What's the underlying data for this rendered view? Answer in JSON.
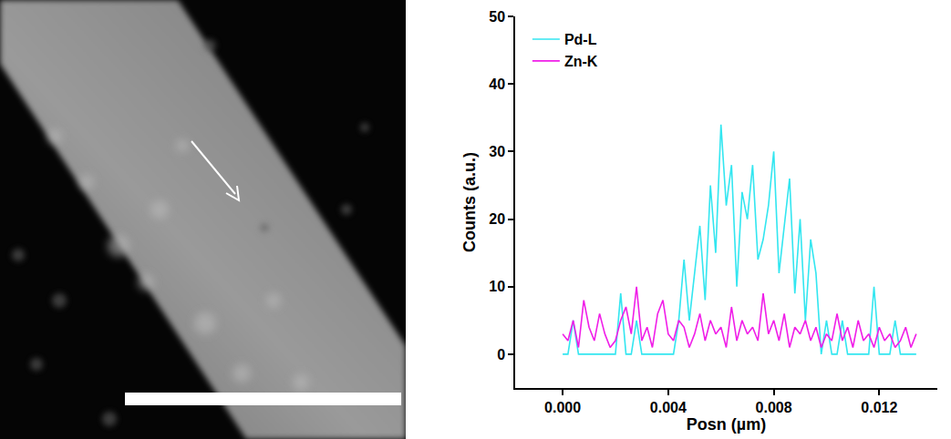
{
  "chart_data": {
    "type": "line",
    "x_label": "Posn (µm)",
    "y_label": "Counts (a.u.)",
    "x": [
      0,
      0.0002,
      0.0004,
      0.0006,
      0.0008,
      0.001,
      0.0012,
      0.0014,
      0.0016,
      0.0018,
      0.002,
      0.0022,
      0.0024,
      0.0026,
      0.0028,
      0.003,
      0.0032,
      0.0034,
      0.0036,
      0.0038,
      0.004,
      0.0042,
      0.0044,
      0.0046,
      0.0048,
      0.005,
      0.0052,
      0.0054,
      0.0056,
      0.0058,
      0.006,
      0.0062,
      0.0064,
      0.0066,
      0.0068,
      0.007,
      0.0072,
      0.0074,
      0.0076,
      0.0078,
      0.008,
      0.0082,
      0.0084,
      0.0086,
      0.0088,
      0.009,
      0.0092,
      0.0094,
      0.0096,
      0.0098,
      0.01,
      0.0102,
      0.0104,
      0.0106,
      0.0108,
      0.011,
      0.0112,
      0.0114,
      0.0116,
      0.0118,
      0.012,
      0.0122,
      0.0124,
      0.0126,
      0.0128,
      0.013,
      0.0132,
      0.0134
    ],
    "series": [
      {
        "name": "Pd-L",
        "color": "#33e6f0",
        "values": [
          0,
          0,
          5,
          0,
          0,
          0,
          0,
          0,
          0,
          0,
          0,
          9,
          0,
          0,
          5,
          0,
          0,
          0,
          0,
          0,
          0,
          0,
          5,
          14,
          5,
          12,
          19,
          8,
          25,
          15,
          34,
          22,
          28,
          10,
          24,
          20,
          28,
          14,
          17,
          22,
          30,
          12,
          19,
          26,
          9,
          20,
          5,
          17,
          12,
          0,
          5,
          0,
          0,
          5,
          0,
          0,
          0,
          0,
          0,
          10,
          0,
          0,
          0,
          5,
          0,
          0,
          0,
          0
        ]
      },
      {
        "name": "Zn-K",
        "color": "#f01ee8",
        "values": [
          3,
          2,
          5,
          1,
          8,
          4,
          2,
          6,
          3,
          1,
          2,
          5,
          7,
          3,
          10,
          2,
          4,
          1,
          6,
          8,
          3,
          2,
          5,
          4,
          1,
          3,
          6,
          2,
          5,
          3,
          4,
          1,
          7,
          2,
          5,
          3,
          4,
          2,
          9,
          3,
          5,
          2,
          6,
          1,
          4,
          3,
          5,
          2,
          4,
          1,
          3,
          2,
          6,
          2,
          4,
          1,
          5,
          2,
          3,
          1,
          4,
          2,
          3,
          1,
          2,
          4,
          1,
          3
        ]
      }
    ],
    "xlim": [
      -0.0018,
      0.0142
    ],
    "ylim": [
      -5,
      50
    ],
    "xticks": [
      {
        "value": 0,
        "label": "0.000"
      },
      {
        "value": 0.004,
        "label": "0.004"
      },
      {
        "value": 0.008,
        "label": "0.008"
      },
      {
        "value": 0.012,
        "label": "0.012"
      }
    ],
    "yticks": [
      0,
      10,
      20,
      30,
      40,
      50
    ],
    "grid": false,
    "legend": "top-left"
  }
}
